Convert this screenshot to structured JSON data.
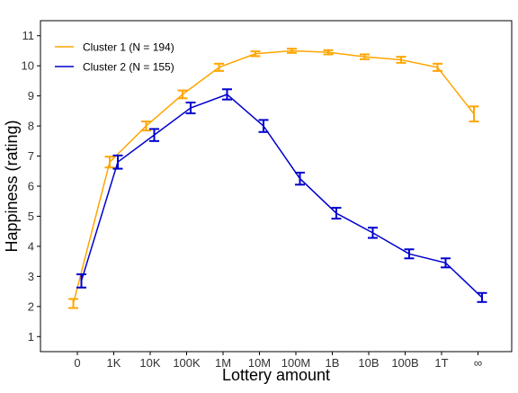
{
  "chart_data": {
    "type": "line",
    "xlabel": "Lottery amount",
    "ylabel": "Happiness (rating)",
    "categories": [
      "0",
      "1K",
      "10K",
      "100K",
      "1M",
      "10M",
      "100M",
      "1B",
      "10B",
      "100B",
      "1T",
      "∞"
    ],
    "ylim": [
      0.5,
      11.5
    ],
    "yticks": [
      1,
      2,
      3,
      4,
      5,
      6,
      7,
      8,
      9,
      10,
      11
    ],
    "grid": false,
    "legend_position": "top-left",
    "series": [
      {
        "name": "Cluster 1 (N = 194)",
        "color": "#FFA500",
        "values": [
          2.1,
          6.8,
          8.0,
          9.05,
          9.95,
          10.4,
          10.5,
          10.45,
          10.3,
          10.2,
          9.95,
          8.4
        ],
        "err": [
          0.15,
          0.18,
          0.15,
          0.13,
          0.12,
          0.08,
          0.07,
          0.07,
          0.08,
          0.1,
          0.12,
          0.25
        ]
      },
      {
        "name": "Cluster 2 (N = 155)",
        "color": "#0000CD",
        "values": [
          2.85,
          6.8,
          7.7,
          8.6,
          9.05,
          8.0,
          6.25,
          5.1,
          4.45,
          3.75,
          3.45,
          2.3
        ],
        "err": [
          0.22,
          0.22,
          0.2,
          0.18,
          0.17,
          0.2,
          0.2,
          0.18,
          0.17,
          0.15,
          0.15,
          0.15
        ]
      }
    ]
  }
}
